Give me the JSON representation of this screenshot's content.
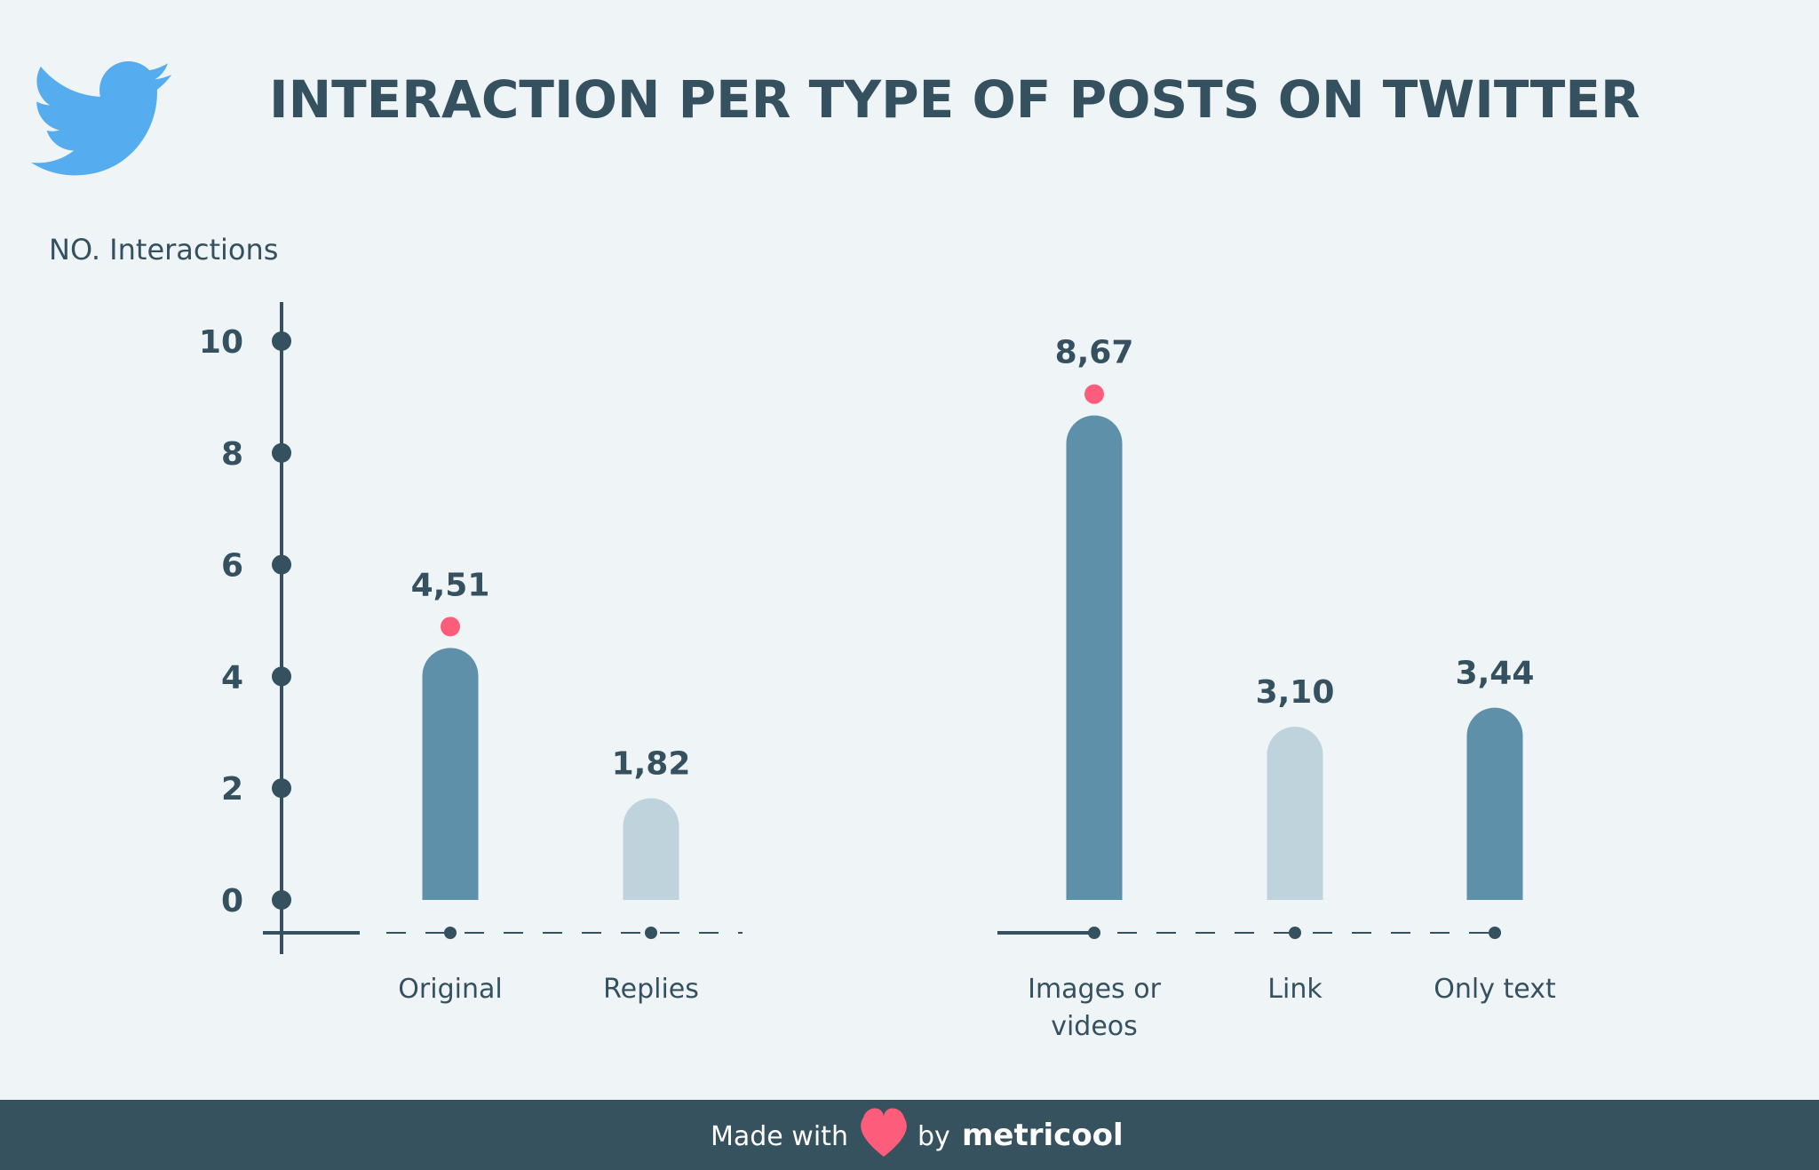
{
  "chart_data": {
    "type": "bar",
    "title": "INTERACTION PER TYPE OF POSTS ON TWITTER",
    "ylabel": "NO. Interactions",
    "ylim": [
      0,
      10
    ],
    "yticks": [
      0,
      2,
      4,
      6,
      8,
      10
    ],
    "yticks_labels": [
      "0",
      "2",
      "4",
      "6",
      "8",
      "10"
    ],
    "grid": false,
    "groups": [
      {
        "categories": [
          {
            "label": [
              "Original"
            ],
            "value": 4.51,
            "value_label": "4,51",
            "color": "#5e90aa",
            "highlight": true
          },
          {
            "label": [
              "Replies"
            ],
            "value": 1.82,
            "value_label": "1,82",
            "color": "#bfd3dc",
            "highlight": false
          }
        ]
      },
      {
        "categories": [
          {
            "label": [
              "Images or",
              "videos"
            ],
            "value": 8.67,
            "value_label": "8,67",
            "color": "#5e90aa",
            "highlight": true
          },
          {
            "label": [
              "Link"
            ],
            "value": 3.1,
            "value_label": "3,10",
            "color": "#bfd3dc",
            "highlight": false
          },
          {
            "label": [
              "Only text"
            ],
            "value": 3.44,
            "value_label": "3,44",
            "color": "#5e90aa",
            "highlight": false
          }
        ]
      }
    ]
  },
  "logo": {
    "icon": "twitter-bird-icon",
    "color": "#55acee"
  },
  "footer": {
    "made_with": "Made with",
    "heart_icon": "heart-icon",
    "by": "by",
    "brand": "metricool"
  },
  "colors": {
    "background": "#eff4f6",
    "text": "#35505f",
    "highlight_dot": "#fd5c7a",
    "footer_bg": "#37525f"
  }
}
